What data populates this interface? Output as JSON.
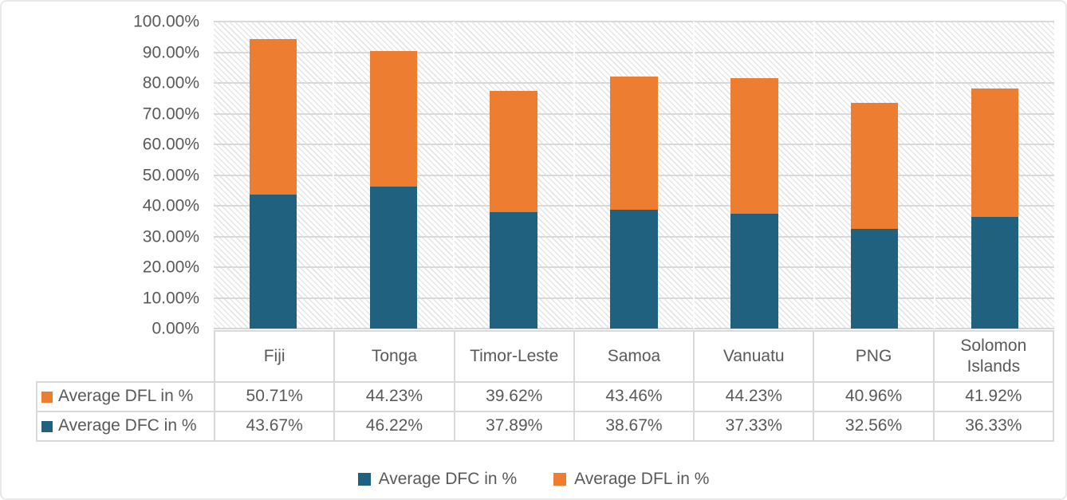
{
  "chart_data": {
    "type": "bar",
    "stacked": true,
    "orientation": "vertical",
    "title": "",
    "xlabel": "",
    "ylabel": "",
    "categories": [
      "Fiji",
      "Tonga",
      "Timor-Leste",
      "Samoa",
      "Vanuatu",
      "PNG",
      "Solomon Islands"
    ],
    "series": [
      {
        "name": "Average DFC in %",
        "color": "#1f617f",
        "values": [
          43.67,
          46.22,
          37.89,
          38.67,
          37.33,
          32.56,
          36.33
        ]
      },
      {
        "name": "Average DFL in %",
        "color": "#ed7d31",
        "values": [
          50.71,
          44.23,
          39.62,
          43.46,
          44.23,
          40.96,
          41.92
        ]
      }
    ],
    "ylim": [
      0,
      100
    ],
    "y_ticks": [
      "100.00%",
      "90.00%",
      "80.00%",
      "70.00%",
      "60.00%",
      "50.00%",
      "40.00%",
      "30.00%",
      "20.00%",
      "10.00%",
      "0.00%"
    ],
    "grid": true,
    "plot_background": "diagonal-hatch",
    "legend_position": "bottom"
  },
  "data_table": {
    "rows": [
      {
        "label": "Average DFL in %",
        "color": "#ed7d31",
        "values": [
          "50.71%",
          "44.23%",
          "39.62%",
          "43.46%",
          "44.23%",
          "40.96%",
          "41.92%"
        ]
      },
      {
        "label": "Average DFC in %",
        "color": "#1f617f",
        "values": [
          "43.67%",
          "46.22%",
          "37.89%",
          "38.67%",
          "37.33%",
          "32.56%",
          "36.33%"
        ]
      }
    ]
  },
  "legend": {
    "items": [
      {
        "label": "Average DFC in %",
        "color": "#1f617f"
      },
      {
        "label": "Average DFL in %",
        "color": "#ed7d31"
      }
    ]
  },
  "colors": {
    "dfc_blue": "#1f617f",
    "dfl_orange": "#ed7d31",
    "gridline": "#d9d9d9",
    "text": "#595959",
    "chart_border": "#e9e9e9"
  }
}
